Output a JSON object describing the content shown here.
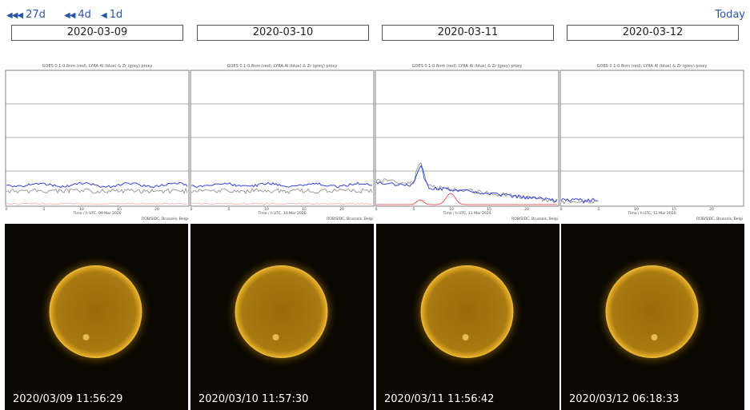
{
  "nav": {
    "back": [
      {
        "arrows": "◀◀◀",
        "label": "27d"
      },
      {
        "arrows": "◀◀",
        "label": "4d"
      },
      {
        "arrows": "◀",
        "label": "1d"
      }
    ],
    "today": "Today"
  },
  "plot_xticks": [
    "0",
    "5",
    "10",
    "15",
    "20"
  ],
  "days": [
    {
      "date": "2020-03-09",
      "plot_title": "GOES 0.1-0.8nm (red), LYRA Al (blue) & Zr (grey) proxy",
      "plot_xlabel": "Time / h UTC, 09 Mar 2020",
      "plot_credit": "ROB/SIDC, Brussels, Belgi",
      "image_time": "2020/03/09 11:56:29"
    },
    {
      "date": "2020-03-10",
      "plot_title": "GOES 0.1-0.8nm (red), LYRA Al (blue) & Zr (grey) proxy",
      "plot_xlabel": "Time / h UTC, 10 Mar 2020",
      "plot_credit": "ROB/SIDC, Brussels, Belgi",
      "image_time": "2020/03/10 11:57:30"
    },
    {
      "date": "2020-03-11",
      "plot_title": "GOES 0.1-0.8nm (red), LYRA Al (blue) & Zr (grey) proxy",
      "plot_xlabel": "Time / h UTC, 11 Mar 2020",
      "plot_credit": "ROB/SIDC, Brussels, Belgi",
      "image_time": "2020/03/11 11:56:42"
    },
    {
      "date": "2020-03-12",
      "plot_title": "GOES 0.1-0.8nm (red), LYRA Al (blue) & Zr (grey) proxy",
      "plot_xlabel": "Time / h UTC, 12 Mar 2020",
      "plot_credit": "ROB/SIDC, Brussels, Belgi",
      "image_time": "2020/03/12 06:18:33"
    }
  ]
}
